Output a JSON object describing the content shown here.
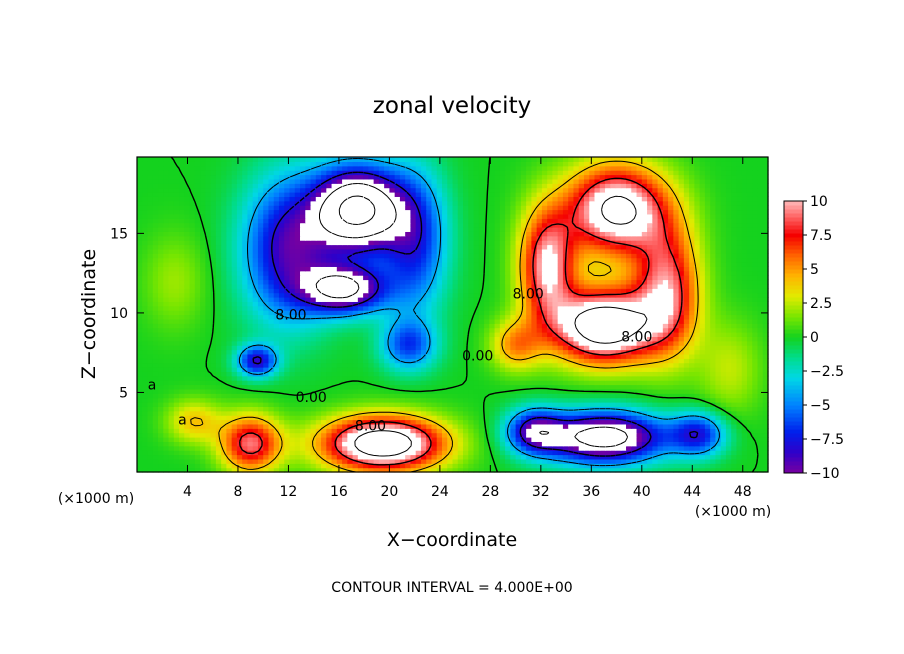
{
  "chart_data": {
    "type": "heatmap",
    "title": "zonal velocity",
    "xlabel": "X−coordinate",
    "ylabel": "Z−coordinate",
    "x_unit_label": "(×1000 m)",
    "z_unit_label": "(×1000 m)",
    "footer": "CONTOUR INTERVAL = 4.000E+00",
    "xlim": [
      0,
      50
    ],
    "ylim": [
      0,
      19.8
    ],
    "x_ticks": [
      "4",
      "8",
      "12",
      "16",
      "20",
      "24",
      "28",
      "32",
      "36",
      "40",
      "44",
      "48"
    ],
    "x_tick_values": [
      4,
      8,
      12,
      16,
      20,
      24,
      28,
      32,
      36,
      40,
      44,
      48
    ],
    "y_ticks": [
      "5",
      "10",
      "15"
    ],
    "y_tick_values": [
      5,
      10,
      15
    ],
    "colorbar": {
      "range": [
        -10,
        10
      ],
      "tick_labels": [
        "10",
        "7.5",
        "5",
        "2.5",
        "0",
        "−2.5",
        "−5",
        "−7.5",
        "−10"
      ],
      "tick_values": [
        10,
        7.5,
        5,
        2.5,
        0,
        -2.5,
        -5,
        -7.5,
        -10
      ]
    },
    "contour_levels": [
      -16,
      -12,
      -8,
      -4,
      0,
      4,
      8,
      12
    ],
    "contour_labels": [
      {
        "text": "8.00",
        "x": 12.2,
        "y": 9.6
      },
      {
        "text": "0.00",
        "x": 13.8,
        "y": 4.4
      },
      {
        "text": "8.00",
        "x": 18.5,
        "y": 2.6
      },
      {
        "text": "0.00",
        "x": 27.0,
        "y": 7.0
      },
      {
        "text": "8.00",
        "x": 31.0,
        "y": 10.9
      },
      {
        "text": "8.00",
        "x": 39.6,
        "y": 8.2
      },
      {
        "text": "a",
        "x": 1.2,
        "y": 5.2
      },
      {
        "text": "a",
        "x": 3.6,
        "y": 3.0
      }
    ],
    "features": [
      {
        "x": 17.5,
        "z": 16.5,
        "u": -17,
        "sx": 3.4,
        "sz": 2.6
      },
      {
        "x": 16.5,
        "z": 11.5,
        "u": -12,
        "sx": 3.2,
        "sz": 1.5
      },
      {
        "x": 12.0,
        "z": 14.0,
        "u": -9,
        "sx": 3.6,
        "sz": 4.5
      },
      {
        "x": 22.0,
        "z": 14.5,
        "u": -7,
        "sx": 2.6,
        "sz": 4.5
      },
      {
        "x": 9.5,
        "z": 7.0,
        "u": -8,
        "sx": 1.6,
        "sz": 1.0
      },
      {
        "x": 21.5,
        "z": 8.0,
        "u": -6,
        "sx": 2.2,
        "sz": 1.6
      },
      {
        "x": 19.5,
        "z": 1.8,
        "u": 15,
        "sx": 4.8,
        "sz": 1.7
      },
      {
        "x": 9.0,
        "z": 1.8,
        "u": 9,
        "sx": 2.4,
        "sz": 1.8
      },
      {
        "x": 4.5,
        "z": 3.2,
        "u": 4,
        "sx": 2.2,
        "sz": 1.4
      },
      {
        "x": 37.0,
        "z": 9.2,
        "u": 15,
        "sx": 4.0,
        "sz": 2.3
      },
      {
        "x": 38.0,
        "z": 16.5,
        "u": 13,
        "sx": 4.0,
        "sz": 2.8
      },
      {
        "x": 32.5,
        "z": 13.0,
        "u": 10,
        "sx": 2.2,
        "sz": 3.5
      },
      {
        "x": 42.0,
        "z": 11.5,
        "u": 9,
        "sx": 2.6,
        "sz": 4.0
      },
      {
        "x": 30.0,
        "z": 8.0,
        "u": 5,
        "sx": 2.0,
        "sz": 1.6
      },
      {
        "x": 37.0,
        "z": 2.2,
        "u": -14,
        "sx": 4.8,
        "sz": 1.6
      },
      {
        "x": 31.5,
        "z": 2.6,
        "u": -8,
        "sx": 2.2,
        "sz": 1.4
      },
      {
        "x": 44.5,
        "z": 2.4,
        "u": -7,
        "sx": 2.2,
        "sz": 1.4
      },
      {
        "x": 3.0,
        "z": 12.0,
        "u": 2,
        "sx": 2.5,
        "sz": 3.0
      },
      {
        "x": 47.0,
        "z": 6.5,
        "u": 2.5,
        "sx": 2.5,
        "sz": 3.0
      }
    ]
  }
}
